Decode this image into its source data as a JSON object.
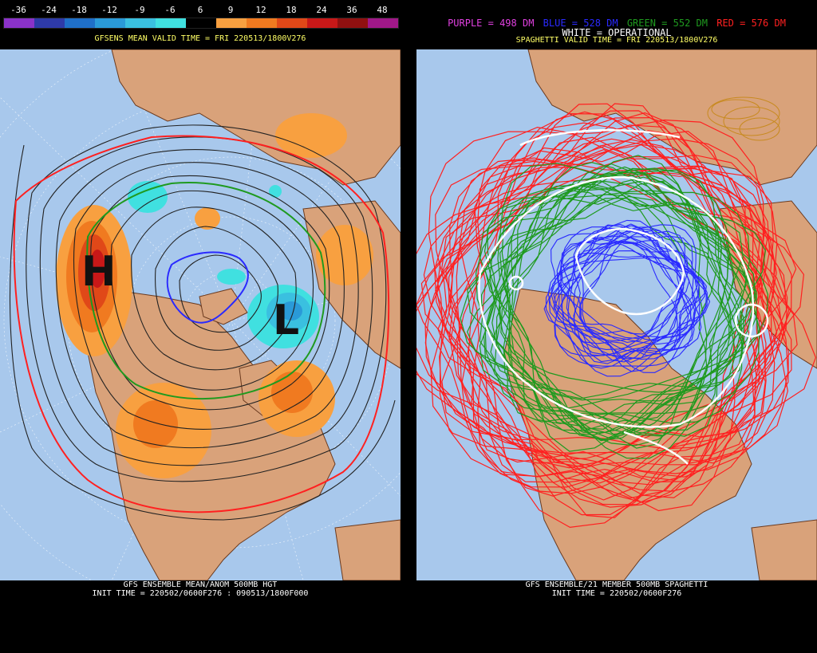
{
  "left": {
    "legend": [
      {
        "label": "-36",
        "color": "#8a32c8"
      },
      {
        "label": "-24",
        "color": "#2e3aa8"
      },
      {
        "label": "-18",
        "color": "#1f6fc8"
      },
      {
        "label": "-12",
        "color": "#2a9ad8"
      },
      {
        "label": "-9",
        "color": "#3ac0e0"
      },
      {
        "label": "-6",
        "color": "#40e0e0"
      },
      {
        "label": "6",
        "color": "#000000"
      },
      {
        "label": "9",
        "color": "#f8a040"
      },
      {
        "label": "12",
        "color": "#f07a20"
      },
      {
        "label": "18",
        "color": "#e04818"
      },
      {
        "label": "24",
        "color": "#c81818"
      },
      {
        "label": "36",
        "color": "#901010"
      },
      {
        "label": "48",
        "color": "#a01888"
      }
    ],
    "valid_time": "GFSENS MEAN VALID TIME = FRI 220513/1800V276",
    "high_label": "H",
    "low_label": "L",
    "footer_line1": "GFS ENSEMBLE MEAN/ANOM 500MB HGT",
    "footer_line2": "INIT TIME = 220502/0600F276 : 090513/1800F000"
  },
  "right": {
    "counts": [
      {
        "text": "PURPLE = 498 DM",
        "color": "#e040e0"
      },
      {
        "text": "BLUE = 528 DM",
        "color": "#2a2aff"
      },
      {
        "text": "GREEN = 552 DM",
        "color": "#1f9a1f"
      },
      {
        "text": "RED = 576 DM",
        "color": "#ff2020"
      }
    ],
    "operational": "WHITE = OPERATIONAL",
    "valid_time": "SPAGHETTI VALID TIME = FRI 220513/1800V276",
    "footer_line1": "GFS ENSEMBLE/21 MEMBER 500MB SPAGHETTI",
    "footer_line2": "INIT TIME = 220502/0600F276"
  },
  "colors": {
    "ocean": "#a8c8ec",
    "land": "#d9a27a",
    "coast": "#6b3a1e"
  }
}
